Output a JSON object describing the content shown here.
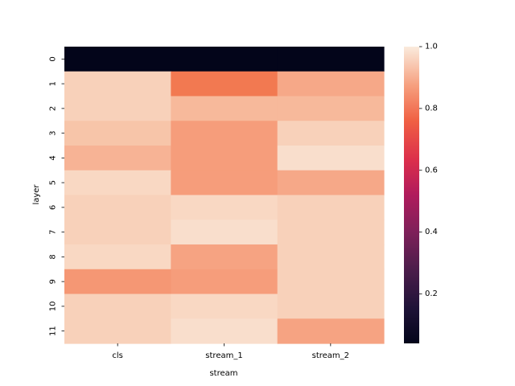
{
  "chart_data": {
    "type": "heatmap",
    "xlabel": "stream",
    "ylabel": "layer",
    "x_categories": [
      "cls",
      "stream_1",
      "stream_2"
    ],
    "y_categories": [
      "0",
      "1",
      "2",
      "3",
      "4",
      "5",
      "6",
      "7",
      "8",
      "9",
      "10",
      "11"
    ],
    "values": [
      [
        0.04,
        0.04,
        0.04
      ],
      [
        0.96,
        0.81,
        0.89
      ],
      [
        0.96,
        0.92,
        0.92
      ],
      [
        0.94,
        0.87,
        0.96
      ],
      [
        0.91,
        0.87,
        0.98
      ],
      [
        0.97,
        0.87,
        0.89
      ],
      [
        0.96,
        0.97,
        0.96
      ],
      [
        0.96,
        0.98,
        0.96
      ],
      [
        0.97,
        0.88,
        0.96
      ],
      [
        0.86,
        0.87,
        0.96
      ],
      [
        0.96,
        0.97,
        0.96
      ],
      [
        0.96,
        0.98,
        0.88
      ]
    ],
    "colorbar": {
      "min": 0.04,
      "max": 1.0,
      "ticks": [
        "0.2",
        "0.4",
        "0.6",
        "0.8",
        "1.0"
      ],
      "colormap": "rocket"
    }
  }
}
